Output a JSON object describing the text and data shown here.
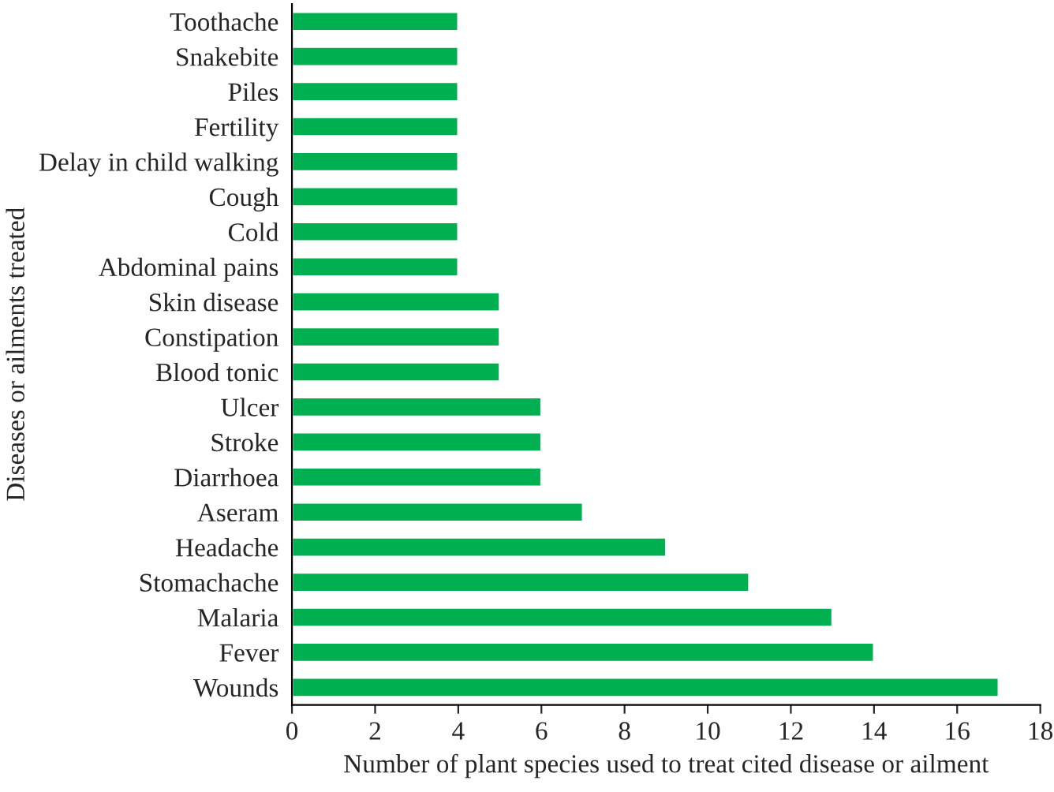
{
  "chart_data": {
    "type": "bar",
    "orientation": "horizontal",
    "xlabel": "Number of plant species used to treat cited disease or ailment",
    "ylabel": "Diseases or ailments treated",
    "categories": [
      "Toothache",
      "Snakebite",
      "Piles",
      "Fertility",
      "Delay in child walking",
      "Cough",
      "Cold",
      "Abdominal pains",
      "Skin disease",
      "Constipation",
      "Blood tonic",
      "Ulcer",
      "Stroke",
      "Diarrhoea",
      "Aseram",
      "Headache",
      "Stomachache",
      "Malaria",
      "Fever",
      "Wounds"
    ],
    "values": [
      4,
      4,
      4,
      4,
      4,
      4,
      4,
      4,
      5,
      5,
      5,
      6,
      6,
      6,
      7,
      9,
      11,
      13,
      14,
      17
    ],
    "color": "#00b050",
    "xlim": [
      0,
      18
    ],
    "xticks": [
      0,
      2,
      4,
      6,
      8,
      10,
      12,
      14,
      16,
      18
    ],
    "grid": false
  }
}
